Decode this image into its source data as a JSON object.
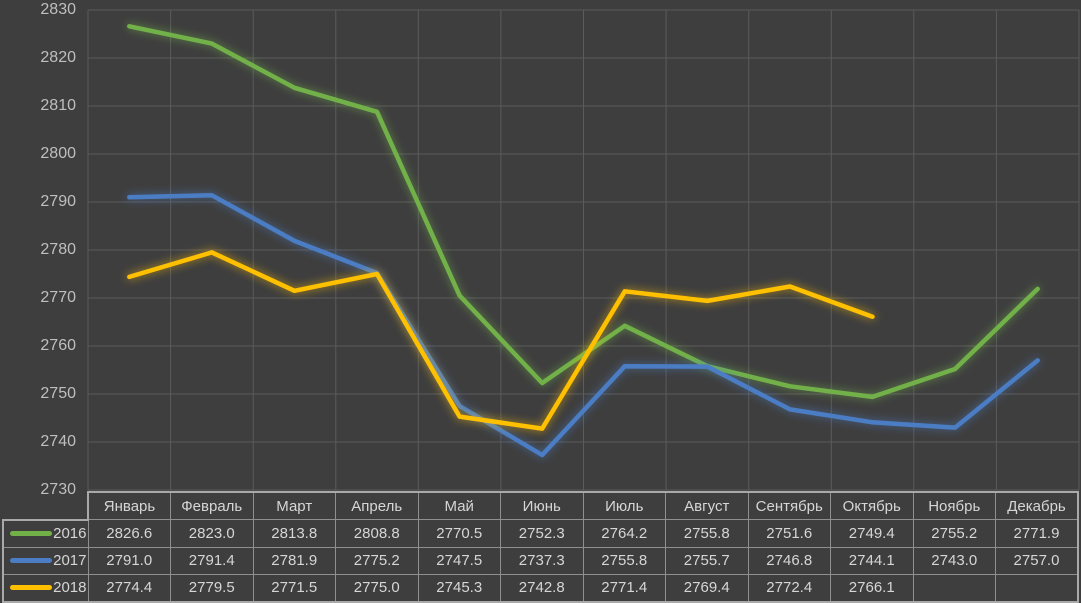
{
  "colors": {
    "background": "#3E3E3E",
    "gridline": "#5B5B5B",
    "axis_text": "#BFBFBF",
    "table_text": "#D6D6D6",
    "table_border_inner": "#8F8F8F",
    "table_border_outer": "#A9A9A9",
    "series_2016": "#72B148",
    "series_2017": "#4C7DC4",
    "series_2018": "#FFC000"
  },
  "chart_data": {
    "type": "line",
    "categories": [
      "Январь",
      "Февраль",
      "Март",
      "Апрель",
      "Май",
      "Июнь",
      "Июль",
      "Август",
      "Сентябрь",
      "Октябрь",
      "Ноябрь",
      "Декабрь"
    ],
    "series": [
      {
        "name": "2016",
        "color": "#72B148",
        "values": [
          2826.6,
          2823.0,
          2813.8,
          2808.8,
          2770.5,
          2752.3,
          2764.2,
          2755.8,
          2751.6,
          2749.4,
          2755.2,
          2771.9
        ]
      },
      {
        "name": "2017",
        "color": "#4C7DC4",
        "values": [
          2791.0,
          2791.4,
          2781.9,
          2775.2,
          2747.5,
          2737.3,
          2755.8,
          2755.7,
          2746.8,
          2744.1,
          2743.0,
          2757.0
        ]
      },
      {
        "name": "2018",
        "color": "#FFC000",
        "values": [
          2774.4,
          2779.5,
          2771.5,
          2775.0,
          2745.3,
          2742.8,
          2771.4,
          2769.4,
          2772.4,
          2766.1,
          null,
          null
        ]
      }
    ],
    "ylim": [
      2730,
      2830
    ],
    "ytick_step": 10,
    "yticks": [
      2830,
      2820,
      2810,
      2800,
      2790,
      2780,
      2770,
      2760,
      2750,
      2740,
      2730
    ],
    "grid": true,
    "glow_effect": true,
    "legend_position": "data-table-left-column"
  },
  "table": {
    "rows": [
      {
        "cells": [
          "2826.6",
          "2823.0",
          "2813.8",
          "2808.8",
          "2770.5",
          "2752.3",
          "2764.2",
          "2755.8",
          "2751.6",
          "2749.4",
          "2755.2",
          "2771.9"
        ]
      },
      {
        "cells": [
          "2791.0",
          "2791.4",
          "2781.9",
          "2775.2",
          "2747.5",
          "2737.3",
          "2755.8",
          "2755.7",
          "2746.8",
          "2744.1",
          "2743.0",
          "2757.0"
        ]
      },
      {
        "cells": [
          "2774.4",
          "2779.5",
          "2771.5",
          "2775.0",
          "2745.3",
          "2742.8",
          "2771.4",
          "2769.4",
          "2772.4",
          "2766.1",
          "",
          ""
        ]
      }
    ]
  }
}
